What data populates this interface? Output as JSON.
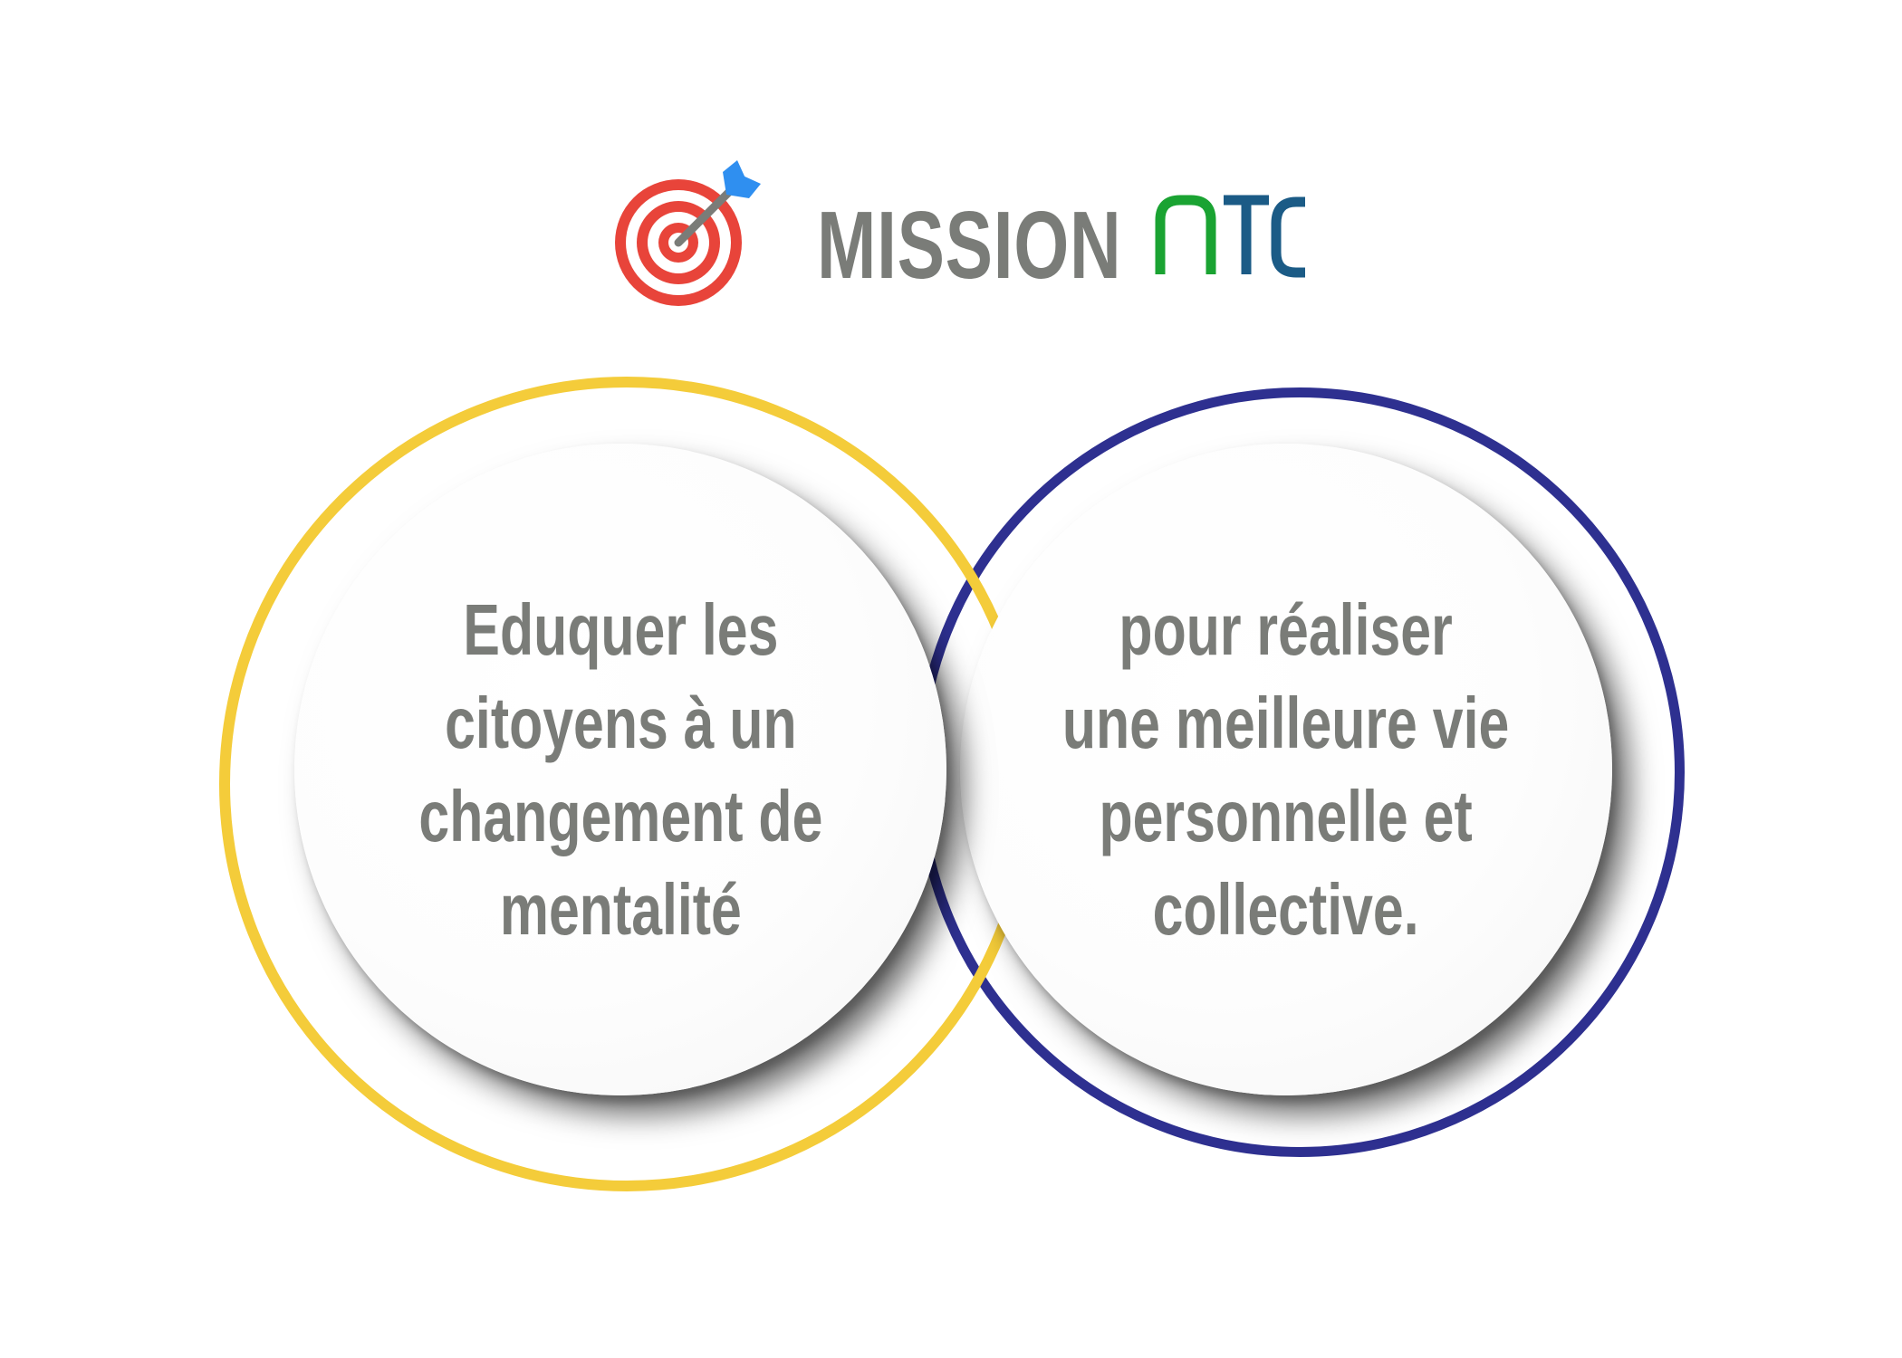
{
  "header": {
    "title": "MISSION",
    "brand": "NTC",
    "icon": "target-arrow-icon"
  },
  "colors": {
    "title_gray": "#7a7c78",
    "brand_green": "#1aa332",
    "brand_blue": "#1b5b86",
    "target_red": "#e8443a",
    "arrow_blue": "#2f8ff0",
    "ring_yellow": "#f4cc3a",
    "ring_navy": "#2e3090"
  },
  "circles": {
    "left": {
      "lines": [
        "Eduquer les",
        "citoyens à un",
        "changement de",
        "mentalité"
      ]
    },
    "right": {
      "lines": [
        "pour réaliser",
        "une meilleure vie",
        "personnelle et",
        "collective."
      ]
    }
  }
}
